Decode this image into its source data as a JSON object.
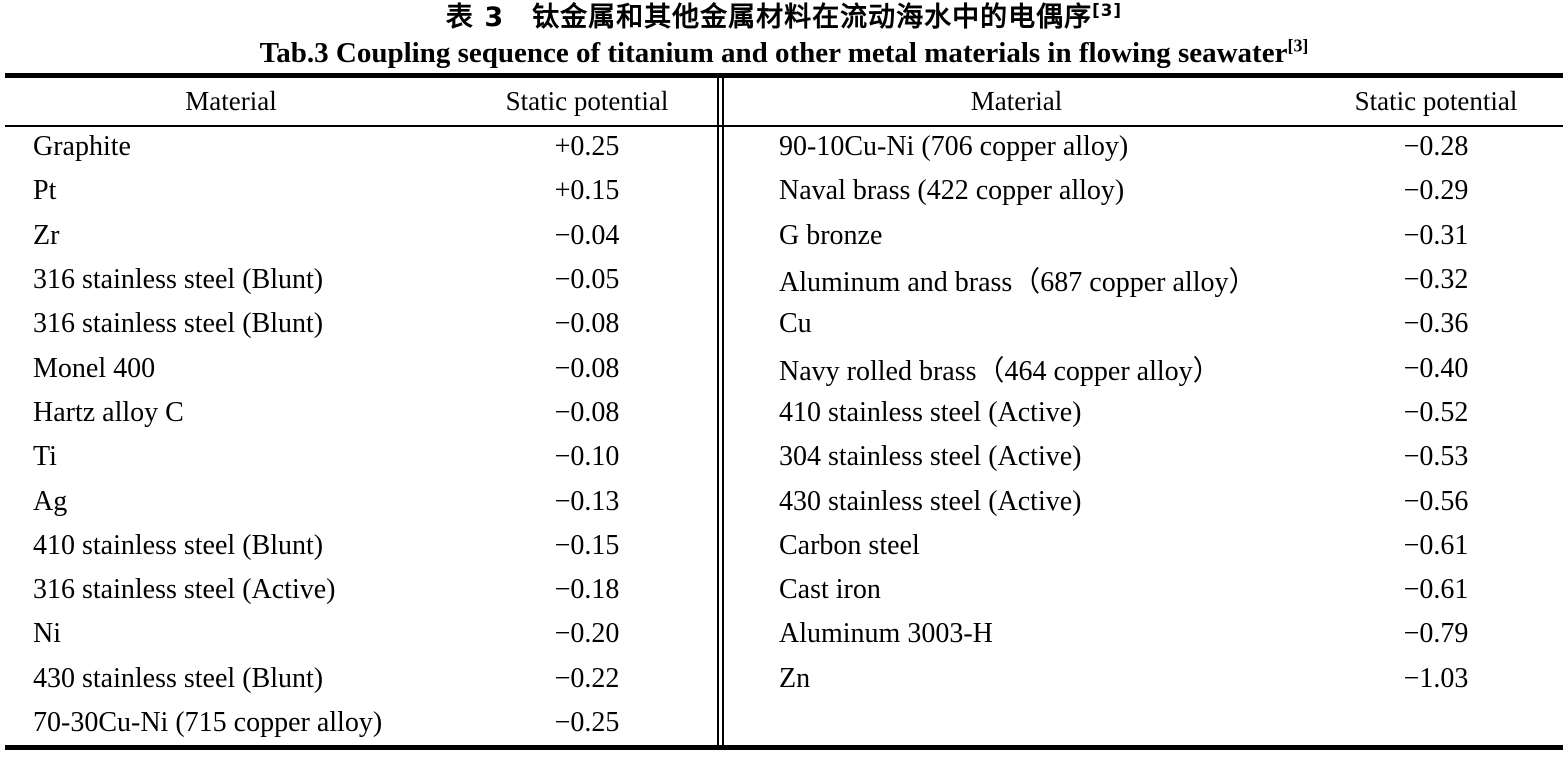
{
  "caption": {
    "zh": "表 3　钛金属和其他金属材料在流动海水中的电偶序",
    "zh_ref": "[3]",
    "en": "Tab.3 Coupling sequence of titanium and other metal materials in flowing seawater",
    "en_ref": "[3]"
  },
  "table": {
    "left": {
      "headers": {
        "material": "Material",
        "potential": "Static potential"
      },
      "rows": [
        {
          "material": "Graphite",
          "potential": "+0.25"
        },
        {
          "material": "Pt",
          "potential": "+0.15"
        },
        {
          "material": "Zr",
          "potential": "−0.04"
        },
        {
          "material": "316 stainless steel (Blunt)",
          "potential": "−0.05"
        },
        {
          "material": "316 stainless steel (Blunt)",
          "potential": "−0.08"
        },
        {
          "material": "Monel 400",
          "potential": "−0.08"
        },
        {
          "material": "Hartz alloy C",
          "potential": "−0.08"
        },
        {
          "material": "Ti",
          "potential": "−0.10"
        },
        {
          "material": "Ag",
          "potential": "−0.13"
        },
        {
          "material": "410 stainless steel (Blunt)",
          "potential": "−0.15"
        },
        {
          "material": "316 stainless steel (Active)",
          "potential": "−0.18"
        },
        {
          "material": "Ni",
          "potential": "−0.20"
        },
        {
          "material": "430 stainless steel (Blunt)",
          "potential": "−0.22"
        },
        {
          "material": "70-30Cu-Ni (715 copper alloy)",
          "potential": "−0.25"
        }
      ]
    },
    "right": {
      "headers": {
        "material": "Material",
        "potential": "Static potential"
      },
      "rows": [
        {
          "material": "90-10Cu-Ni (706 copper alloy)",
          "potential": "−0.28"
        },
        {
          "material": "Naval brass (422 copper alloy)",
          "potential": "−0.29"
        },
        {
          "material": "G bronze",
          "potential": "−0.31"
        },
        {
          "material": "Aluminum and brass（687 copper alloy）",
          "potential": "−0.32"
        },
        {
          "material": "Cu",
          "potential": "−0.36"
        },
        {
          "material": "Navy rolled brass（464 copper alloy）",
          "potential": "−0.40"
        },
        {
          "material": "410 stainless steel (Active)",
          "potential": "−0.52"
        },
        {
          "material": "304 stainless steel (Active)",
          "potential": "−0.53"
        },
        {
          "material": "430 stainless steel (Active)",
          "potential": "−0.56"
        },
        {
          "material": "Carbon steel",
          "potential": "−0.61"
        },
        {
          "material": "Cast iron",
          "potential": "−0.61"
        },
        {
          "material": "Aluminum 3003-H",
          "potential": "−0.79"
        },
        {
          "material": "Zn",
          "potential": "−1.03"
        }
      ]
    }
  },
  "colors": {
    "text": "#000000",
    "background": "#ffffff",
    "rule": "#000000"
  }
}
